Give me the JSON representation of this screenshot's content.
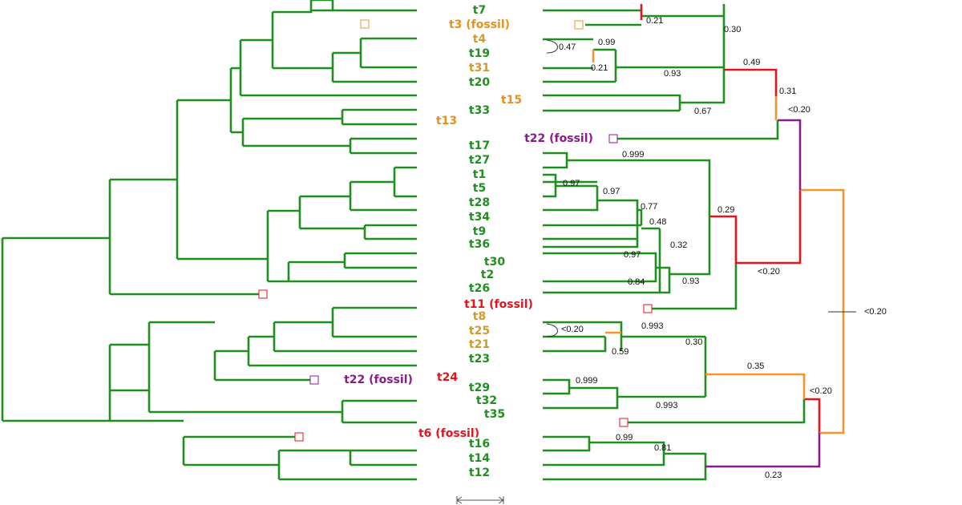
{
  "taxa": [
    {
      "label": "t7",
      "color": "#1f8f1f"
    },
    {
      "label": "t3 (fossil)",
      "color": "#e8901e"
    },
    {
      "label": "t4",
      "color": "#d29a2a"
    },
    {
      "label": "t19",
      "color": "#1f8f1f"
    },
    {
      "label": "t31",
      "color": "#d29a2a"
    },
    {
      "label": "t20",
      "color": "#1f8f1f"
    },
    {
      "label": "t15",
      "color": "#e8901e"
    },
    {
      "label": "t33",
      "color": "#1f8f1f"
    },
    {
      "label": "t13",
      "color": "#e8901e"
    },
    {
      "label": "t22 (fossil)",
      "color": "#8b1a8b"
    },
    {
      "label": "t17",
      "color": "#1f8f1f"
    },
    {
      "label": "t27",
      "color": "#1f8f1f"
    },
    {
      "label": "t1",
      "color": "#1f8f1f"
    },
    {
      "label": "t5",
      "color": "#1f8f1f"
    },
    {
      "label": "t28",
      "color": "#1f8f1f"
    },
    {
      "label": "t34",
      "color": "#1f8f1f"
    },
    {
      "label": "t9",
      "color": "#1f8f1f"
    },
    {
      "label": "t36",
      "color": "#1f8f1f"
    },
    {
      "label": "t30",
      "color": "#1f8f1f"
    },
    {
      "label": "t2",
      "color": "#1f8f1f"
    },
    {
      "label": "t26",
      "color": "#1f8f1f"
    },
    {
      "label": "t11 (fossil)",
      "color": "#e8121a"
    },
    {
      "label": "t8",
      "color": "#d29a2a"
    },
    {
      "label": "t25",
      "color": "#d29a2a"
    },
    {
      "label": "t21",
      "color": "#d29a2a"
    },
    {
      "label": "t23",
      "color": "#1f8f1f"
    },
    {
      "label": "t22 (fossil)",
      "color": "#8b1a8b"
    },
    {
      "label": "t24",
      "color": "#e8121a"
    },
    {
      "label": "t29",
      "color": "#1f8f1f"
    },
    {
      "label": "t32",
      "color": "#1f8f1f"
    },
    {
      "label": "t35",
      "color": "#1f8f1f"
    },
    {
      "label": "t6 (fossil)",
      "color": "#e8121a"
    },
    {
      "label": "t16",
      "color": "#1f8f1f"
    },
    {
      "label": "t14",
      "color": "#1f8f1f"
    },
    {
      "label": "t12",
      "color": "#1f8f1f"
    }
  ],
  "supports": [
    "0.21",
    "0.30",
    "0.99",
    "0.47",
    "0.21",
    "0.93",
    "0.49",
    "0.31",
    "0.67",
    "<0.20",
    "0.999",
    "0.97",
    "0.97",
    "0.77",
    "0.48",
    "0.32",
    "0.97",
    "0.84",
    "0.93",
    "0.29",
    "<0.20",
    "<0.20",
    "<0.20",
    "0.993",
    "0.30",
    "0.59",
    "0.35",
    "<0.20",
    "0.999",
    "0.993",
    "0.99",
    "0.81",
    "0.23"
  ]
}
